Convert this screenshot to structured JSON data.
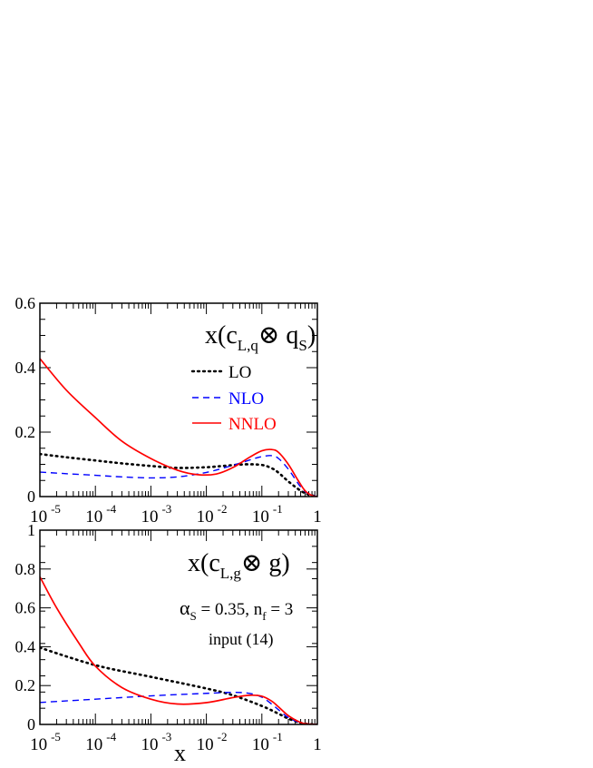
{
  "chart_data": [
    {
      "type": "line",
      "title": "x(c_{L,q} ⊗ q_S)",
      "title_parts": {
        "pre": "x(c",
        "sub1": "L,q",
        "otimes": "⊗",
        "mid": " q",
        "sub2": "S",
        "post": ")"
      },
      "xscale": "log",
      "xlim": [
        1e-05,
        1
      ],
      "ylim": [
        0,
        0.6
      ],
      "x_ticks": [
        {
          "base": "10",
          "exp": "-5",
          "value": 1e-05
        },
        {
          "base": "10",
          "exp": "-4",
          "value": 0.0001
        },
        {
          "base": "10",
          "exp": "-3",
          "value": 0.001
        },
        {
          "base": "10",
          "exp": "-2",
          "value": 0.01
        },
        {
          "base": "10",
          "exp": "-1",
          "value": 0.1
        },
        {
          "base": "1",
          "exp": "",
          "value": 1
        }
      ],
      "y_ticks": [
        "0",
        "0.2",
        "0.4",
        "0.6"
      ],
      "y_tick_values": [
        0,
        0.2,
        0.4,
        0.6
      ],
      "legend": {
        "position": "top-right",
        "entries": [
          "LO",
          "NLO",
          "NNLO"
        ]
      },
      "series": [
        {
          "name": "LO",
          "color": "#000000",
          "style": "dotted",
          "x": [
            1e-05,
            3e-05,
            0.0001,
            0.0003,
            0.001,
            0.003,
            0.01,
            0.02,
            0.05,
            0.1,
            0.15,
            0.2,
            0.3,
            0.5,
            0.7,
            1.0
          ],
          "y": [
            0.132,
            0.122,
            0.112,
            0.103,
            0.095,
            0.089,
            0.091,
            0.095,
            0.1,
            0.098,
            0.088,
            0.074,
            0.047,
            0.018,
            0.006,
            0.0
          ]
        },
        {
          "name": "NLO",
          "color": "#0000ff",
          "style": "dashed",
          "x": [
            1e-05,
            3e-05,
            0.0001,
            0.0003,
            0.001,
            0.003,
            0.01,
            0.03,
            0.07,
            0.1,
            0.15,
            0.2,
            0.3,
            0.5,
            0.7,
            1.0
          ],
          "y": [
            0.076,
            0.071,
            0.066,
            0.061,
            0.058,
            0.061,
            0.075,
            0.097,
            0.117,
            0.124,
            0.127,
            0.118,
            0.085,
            0.03,
            0.008,
            0.0
          ]
        },
        {
          "name": "NNLO",
          "color": "#ff0000",
          "style": "solid",
          "x": [
            1e-05,
            3e-05,
            0.0001,
            0.0003,
            0.001,
            0.003,
            0.007,
            0.015,
            0.03,
            0.06,
            0.1,
            0.15,
            0.2,
            0.3,
            0.45,
            0.6,
            0.8,
            1.0
          ],
          "y": [
            0.428,
            0.33,
            0.245,
            0.172,
            0.118,
            0.082,
            0.068,
            0.07,
            0.09,
            0.122,
            0.142,
            0.146,
            0.137,
            0.1,
            0.05,
            0.018,
            0.003,
            0.0
          ]
        }
      ]
    },
    {
      "type": "line",
      "title": "x(c_{L,g} ⊗ g)",
      "title_parts": {
        "pre": "x(c",
        "sub1": "L,g",
        "otimes": "⊗",
        "mid": " g",
        "sub2": "",
        "post": ")"
      },
      "annotation_parts": {
        "alpha": "α",
        "alpha_sub": "S",
        "alpha_rest": " = 0.35, n",
        "nf_sub": "f",
        "nf_rest": " = 3"
      },
      "annotation2": "input (14)",
      "xscale": "log",
      "xlim": [
        1e-05,
        1
      ],
      "ylim": [
        0,
        1.0
      ],
      "xlabel": "x",
      "x_ticks": [
        {
          "base": "10",
          "exp": "-5",
          "value": 1e-05
        },
        {
          "base": "10",
          "exp": "-4",
          "value": 0.0001
        },
        {
          "base": "10",
          "exp": "-3",
          "value": 0.001
        },
        {
          "base": "10",
          "exp": "-2",
          "value": 0.01
        },
        {
          "base": "10",
          "exp": "-1",
          "value": 0.1
        },
        {
          "base": "1",
          "exp": "",
          "value": 1
        }
      ],
      "y_ticks": [
        "0",
        "0.2",
        "0.4",
        "0.6",
        "0.8",
        "1"
      ],
      "y_tick_values": [
        0,
        0.2,
        0.4,
        0.6,
        0.8,
        1.0
      ],
      "series": [
        {
          "name": "LO",
          "color": "#000000",
          "style": "dotted",
          "x": [
            1e-05,
            0.0001,
            0.001,
            0.01,
            0.03,
            0.1,
            0.2,
            0.3,
            0.5,
            0.7,
            1.0
          ],
          "y": [
            0.395,
            0.305,
            0.245,
            0.185,
            0.15,
            0.095,
            0.055,
            0.03,
            0.008,
            0.002,
            0.0
          ]
        },
        {
          "name": "NLO",
          "color": "#0000ff",
          "style": "dashed",
          "x": [
            1e-05,
            0.0001,
            0.001,
            0.01,
            0.03,
            0.06,
            0.1,
            0.15,
            0.2,
            0.3,
            0.5,
            0.7,
            1.0
          ],
          "y": [
            0.113,
            0.13,
            0.147,
            0.16,
            0.165,
            0.16,
            0.14,
            0.105,
            0.075,
            0.035,
            0.008,
            0.002,
            0.0
          ]
        },
        {
          "name": "NNLO",
          "color": "#ff0000",
          "style": "solid",
          "x": [
            1e-05,
            2e-05,
            5e-05,
            0.0001,
            0.0003,
            0.001,
            0.003,
            0.01,
            0.03,
            0.06,
            0.1,
            0.15,
            0.2,
            0.3,
            0.5,
            0.7,
            1.0
          ],
          "y": [
            0.76,
            0.6,
            0.42,
            0.3,
            0.19,
            0.13,
            0.105,
            0.112,
            0.138,
            0.15,
            0.145,
            0.12,
            0.09,
            0.045,
            0.01,
            0.002,
            0.0
          ]
        }
      ]
    }
  ]
}
